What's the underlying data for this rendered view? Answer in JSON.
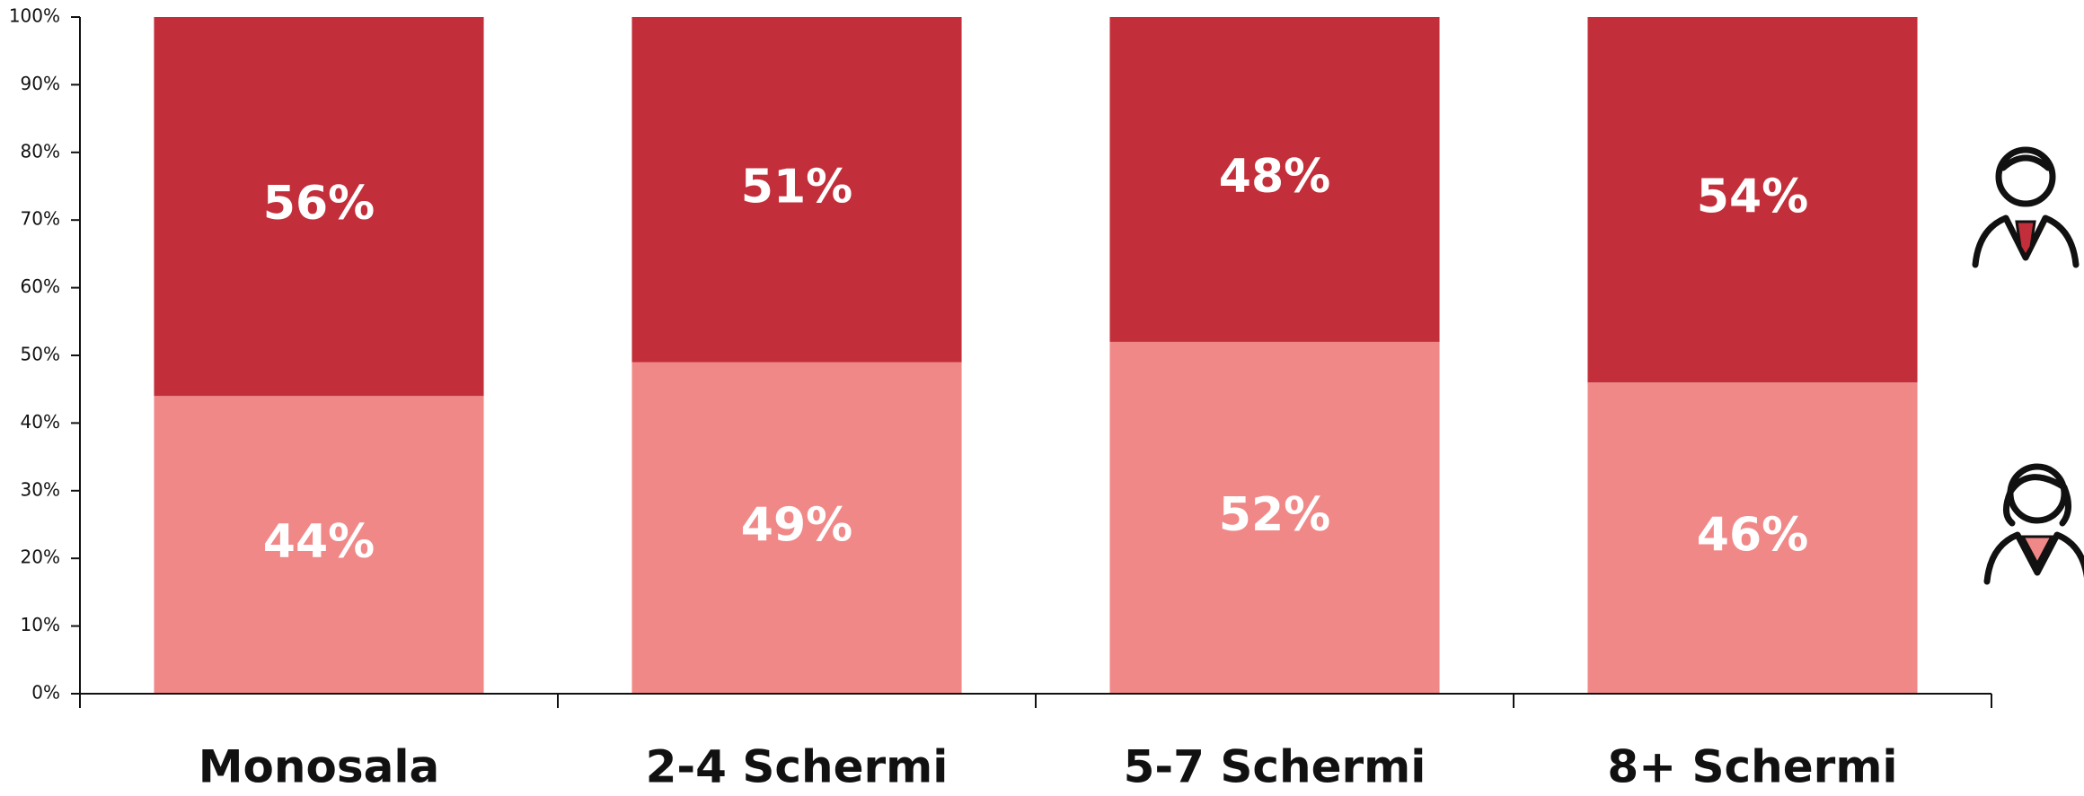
{
  "chart_data": {
    "type": "stacked_bar",
    "categories": [
      "Monosala",
      "2-4 Schermi",
      "5-7 Schermi",
      "8+ Schermi"
    ],
    "series": [
      {
        "color": "#f08888",
        "values": [
          44,
          49,
          52,
          46
        ],
        "value_labels": [
          "44%",
          "49%",
          "52%",
          "46%"
        ]
      },
      {
        "color": "#c22e39",
        "values": [
          56,
          51,
          48,
          54
        ],
        "value_labels": [
          "56%",
          "51%",
          "48%",
          "54%"
        ]
      }
    ],
    "ylim": [
      0,
      100
    ],
    "yticks": [
      {
        "value": 0,
        "label": "0%"
      },
      {
        "value": 10,
        "label": "10%"
      },
      {
        "value": 20,
        "label": "20%"
      },
      {
        "value": 30,
        "label": "30%"
      },
      {
        "value": 40,
        "label": "40%"
      },
      {
        "value": 50,
        "label": "50%"
      },
      {
        "value": 60,
        "label": "60%"
      },
      {
        "value": 70,
        "label": "70%"
      },
      {
        "value": 80,
        "label": "80%"
      },
      {
        "value": 90,
        "label": "90%"
      },
      {
        "value": 100,
        "label": "100%"
      }
    ]
  }
}
